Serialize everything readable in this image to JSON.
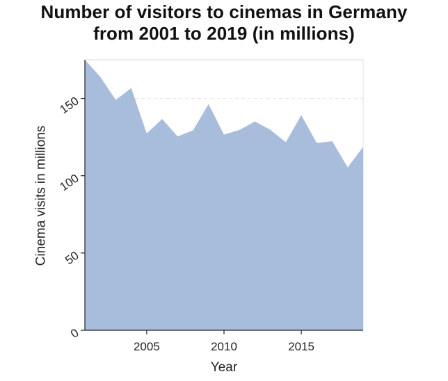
{
  "title_lines": [
    "Number of visitors to cinemas in Germany",
    "from 2001 to 2019 (in millions)"
  ],
  "colors": {
    "area_fill": "#a8bcdc",
    "gridline": "#e3e3e3",
    "frame": "#dddddd",
    "axis": "#222222"
  },
  "chart_data": {
    "type": "area",
    "title": "Number of visitors to cinemas in Germany from 2001 to 2019 (in millions)",
    "xlabel": "Year",
    "ylabel": "Cinema visits in millions",
    "x": [
      2001,
      2002,
      2003,
      2004,
      2005,
      2006,
      2007,
      2008,
      2009,
      2010,
      2011,
      2012,
      2013,
      2014,
      2015,
      2016,
      2017,
      2018,
      2019
    ],
    "series": [
      {
        "values": [
          177.9,
          163.9,
          149.0,
          156.7,
          127.3,
          136.7,
          125.4,
          129.4,
          146.3,
          126.6,
          129.6,
          135.1,
          129.7,
          121.7,
          139.2,
          121.1,
          122.3,
          105.4,
          118.6
        ]
      }
    ],
    "xlim": [
      2001,
      2019
    ],
    "ylim": [
      0,
      175
    ],
    "xticks": [
      2005,
      2010,
      2015
    ],
    "xtick_labels": [
      "2005",
      "2010",
      "2015"
    ],
    "yticks": [
      0,
      50,
      100,
      150
    ],
    "ytick_labels": [
      "0",
      "50",
      "100",
      "150"
    ],
    "grid": true,
    "legend": "none"
  }
}
